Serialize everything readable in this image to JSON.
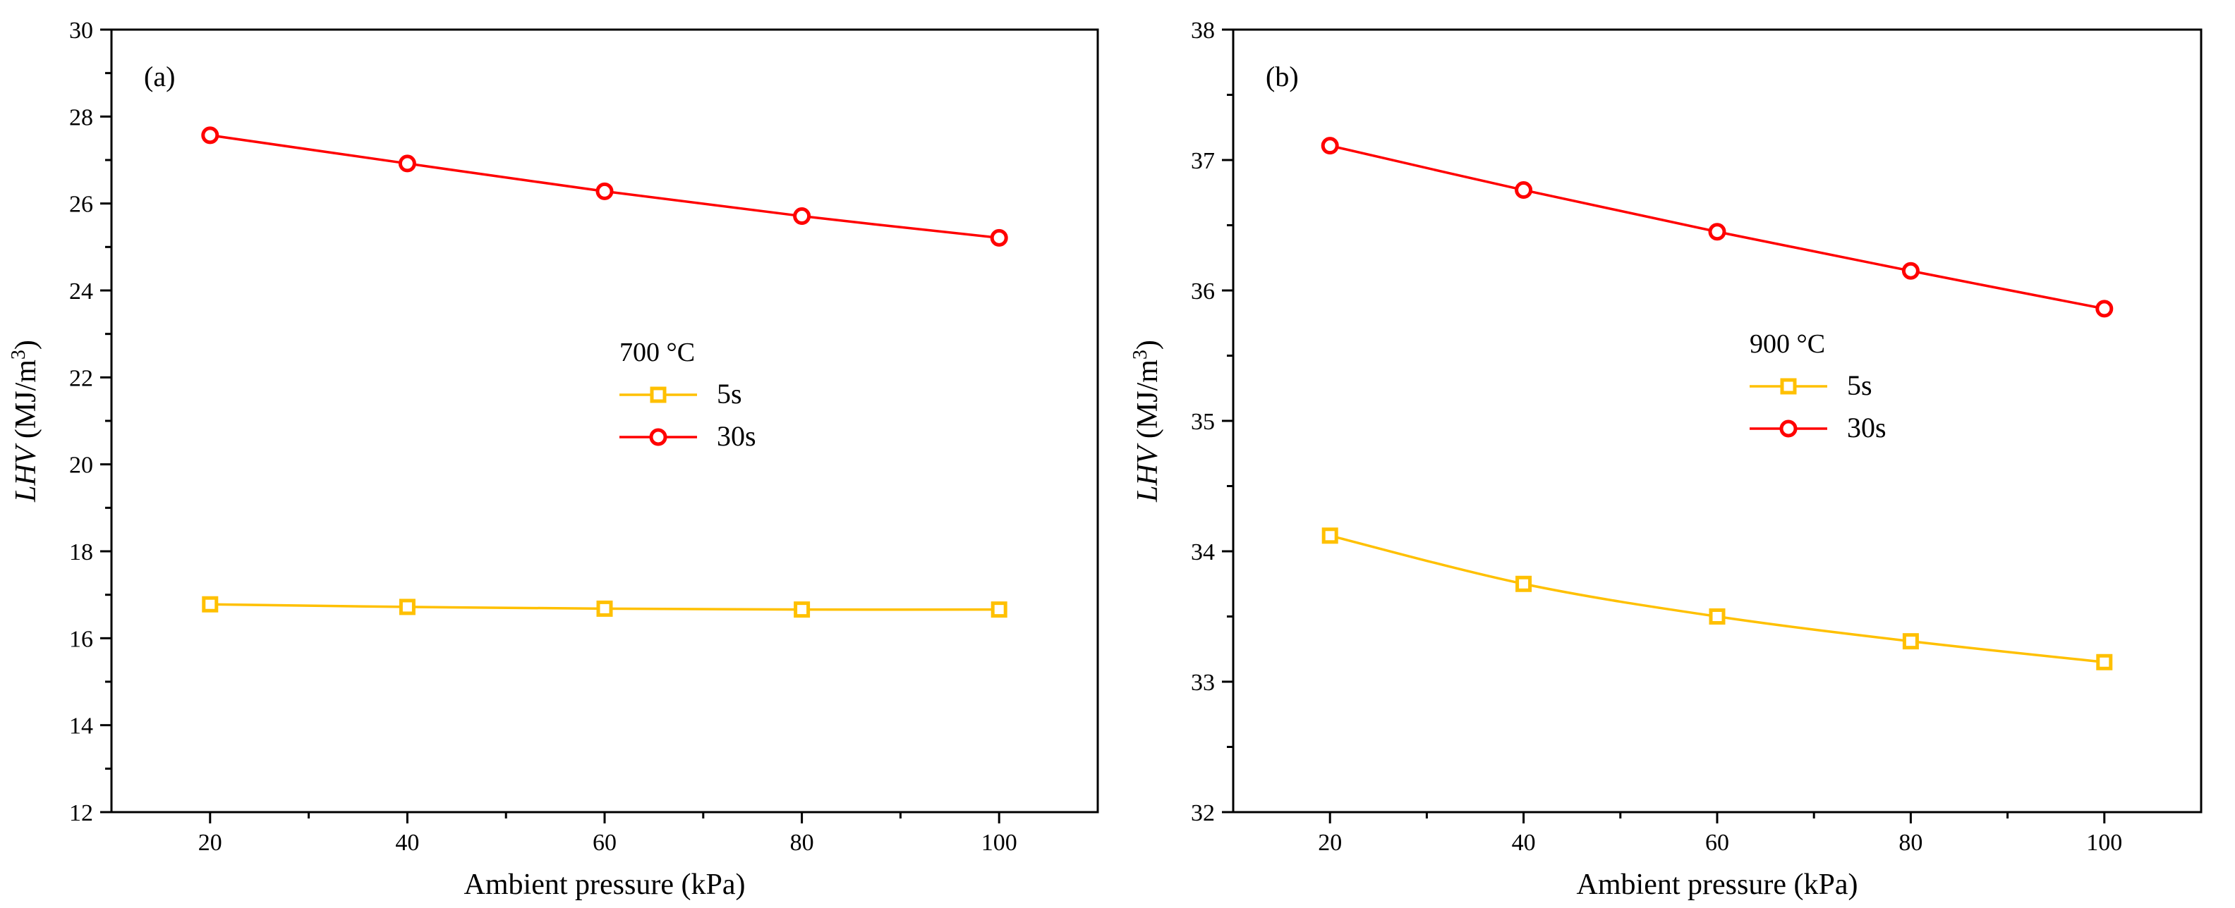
{
  "chart_data": [
    {
      "type": "line",
      "panel_label": "(a)",
      "title": "",
      "xlabel": "Ambient pressure (kPa)",
      "ylabel_italic": "LHV",
      "ylabel_unit_prefix": " (MJ/m",
      "ylabel_superscript": "3",
      "ylabel_unit_suffix": ")",
      "xlim": [
        10,
        110
      ],
      "ylim": [
        12,
        30
      ],
      "xticks": [
        20,
        40,
        60,
        80,
        100
      ],
      "xtick_labels": [
        "20",
        "40",
        "60",
        "80",
        "100"
      ],
      "yticks": [
        12,
        14,
        16,
        18,
        20,
        22,
        24,
        26,
        28,
        30
      ],
      "ytick_labels": [
        "12",
        "14",
        "16",
        "18",
        "20",
        "22",
        "24",
        "26",
        "28",
        "30"
      ],
      "legend_title": "700 °C",
      "legend_position": "center",
      "grid": false,
      "x": [
        20,
        40,
        60,
        80,
        100
      ],
      "series": [
        {
          "name": "5s",
          "color": "#FFC000",
          "marker": "square",
          "values": [
            16.78,
            16.72,
            16.68,
            16.66,
            16.66
          ]
        },
        {
          "name": "30s",
          "color": "#FF0000",
          "marker": "circle",
          "values": [
            27.57,
            26.92,
            26.28,
            25.71,
            25.21
          ]
        }
      ]
    },
    {
      "type": "line",
      "panel_label": "(b)",
      "title": "",
      "xlabel": "Ambient pressure (kPa)",
      "ylabel_italic": "LHV",
      "ylabel_unit_prefix": " (MJ/m",
      "ylabel_superscript": "3",
      "ylabel_unit_suffix": ")",
      "xlim": [
        10,
        110
      ],
      "ylim": [
        32,
        38
      ],
      "xticks": [
        20,
        40,
        60,
        80,
        100
      ],
      "xtick_labels": [
        "20",
        "40",
        "60",
        "80",
        "100"
      ],
      "yticks": [
        32,
        33,
        34,
        35,
        36,
        37,
        38
      ],
      "ytick_labels": [
        "32",
        "33",
        "34",
        "35",
        "36",
        "37",
        "38"
      ],
      "legend_title": "900 °C",
      "legend_position": "center",
      "grid": false,
      "x": [
        20,
        40,
        60,
        80,
        100
      ],
      "series": [
        {
          "name": "5s",
          "color": "#FFC000",
          "marker": "square",
          "values": [
            34.12,
            33.75,
            33.5,
            33.31,
            33.15
          ]
        },
        {
          "name": "30s",
          "color": "#FF0000",
          "marker": "circle",
          "values": [
            37.11,
            36.77,
            36.45,
            36.15,
            35.86
          ]
        }
      ]
    }
  ]
}
